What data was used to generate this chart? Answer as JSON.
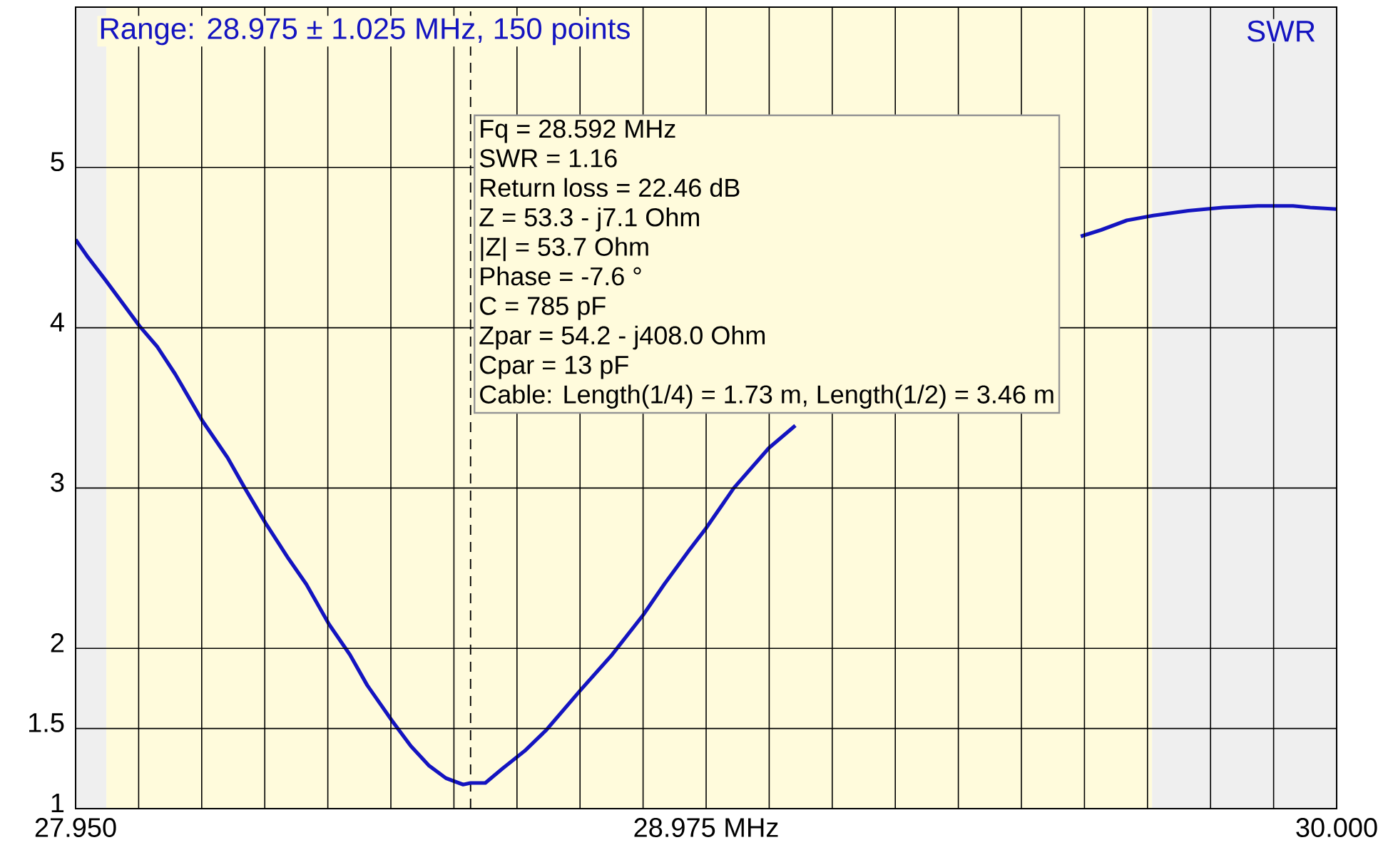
{
  "chart_data": {
    "type": "line",
    "ylabel": "SWR",
    "annotations": [
      "Range: 28.975 ± 1.025 MHz, 150 points",
      "Fq = 28.592 MHz",
      "SWR = 1.16",
      "Return loss = 22.46 dB",
      "Z = 53.3 - j7.1 Ohm",
      "|Z| = 53.7 Ohm",
      "Phase = -7.6 °",
      "C = 785 pF",
      "Zpar = 54.2 - j408.0 Ohm",
      "Cpar = 13 pF",
      "Cable: Length(1/4) = 1.73 m, Length(1/2) = 3.46 m"
    ],
    "x": [
      27.95,
      27.97,
      27.998,
      28.027,
      28.054,
      28.083,
      28.112,
      28.156,
      28.197,
      28.225,
      28.259,
      28.296,
      28.325,
      28.362,
      28.396,
      28.424,
      28.464,
      28.495,
      28.524,
      28.552,
      28.58,
      28.592,
      28.616,
      28.644,
      28.68,
      28.715,
      28.771,
      28.822,
      28.873,
      28.907,
      28.949,
      28.975,
      29.02,
      29.077,
      29.12,
      29.35,
      29.584,
      29.617,
      29.659,
      29.702,
      29.759,
      29.815,
      29.872,
      29.929,
      29.957,
      30.0
    ],
    "series": [
      {
        "color": "#1414c0",
        "values": [
          4.55,
          4.44,
          4.3,
          4.15,
          4.01,
          3.88,
          3.71,
          3.42,
          3.19,
          3.0,
          2.78,
          2.56,
          2.4,
          2.15,
          1.96,
          1.77,
          1.55,
          1.39,
          1.27,
          1.19,
          1.15,
          1.16,
          1.16,
          1.25,
          1.36,
          1.49,
          1.74,
          1.96,
          2.21,
          2.4,
          2.62,
          2.75,
          3.0,
          3.25,
          3.39,
          null,
          4.57,
          4.61,
          4.67,
          4.7,
          4.73,
          4.75,
          4.76,
          4.76,
          4.75,
          4.74
        ]
      }
    ],
    "xlim": [
      27.95,
      30.0
    ],
    "ylim": [
      1,
      6
    ],
    "xticks": [
      {
        "value": 27.95,
        "label": "27.950"
      },
      {
        "value": 28.0525,
        "label": null
      },
      {
        "value": 28.155,
        "label": null
      },
      {
        "value": 28.2575,
        "label": null
      },
      {
        "value": 28.36,
        "label": null
      },
      {
        "value": 28.4625,
        "label": null
      },
      {
        "value": 28.565,
        "label": null
      },
      {
        "value": 28.6675,
        "label": null
      },
      {
        "value": 28.77,
        "label": null
      },
      {
        "value": 28.8725,
        "label": null
      },
      {
        "value": 28.975,
        "label": "28.975 MHz"
      },
      {
        "value": 29.0775,
        "label": null
      },
      {
        "value": 29.18,
        "label": null
      },
      {
        "value": 29.2825,
        "label": null
      },
      {
        "value": 29.385,
        "label": null
      },
      {
        "value": 29.4875,
        "label": null
      },
      {
        "value": 29.59,
        "label": null
      },
      {
        "value": 29.6925,
        "label": null
      },
      {
        "value": 29.795,
        "label": null
      },
      {
        "value": 29.8975,
        "label": null
      },
      {
        "value": 30.0,
        "label": "30.000"
      }
    ],
    "yticks": [
      1,
      1.5,
      2,
      3,
      4,
      5
    ],
    "bands": [
      {
        "axis": "x",
        "from": 27.95,
        "to": 28.0,
        "color": "#efefef"
      },
      {
        "axis": "x",
        "from": 28.0,
        "to": 29.7,
        "color": "#fffbdc"
      },
      {
        "axis": "x",
        "from": 29.7,
        "to": 30.0,
        "color": "#efefef"
      }
    ],
    "ref_lines": [
      {
        "axis": "x",
        "value": 28.592,
        "color": "#000000",
        "line_style": "dashed"
      }
    ],
    "grid": true,
    "marker": "none",
    "line_style": "solid"
  }
}
